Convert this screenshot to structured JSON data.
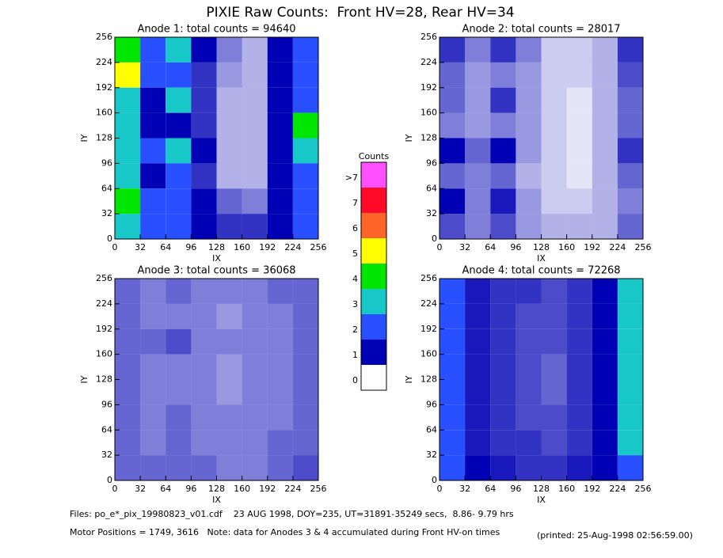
{
  "title": "PIXIE Raw Counts:  Front HV=28, Rear HV=34",
  "chart_data": [
    {
      "type": "heatmap",
      "title": "Anode 1: total counts = 94640",
      "xlabel": "IX",
      "ylabel": "IY",
      "xlim": [
        0,
        256
      ],
      "ylim": [
        0,
        256
      ],
      "xticks": [
        0,
        32,
        64,
        96,
        128,
        160,
        192,
        224,
        256
      ],
      "yticks": [
        0,
        32,
        64,
        96,
        128,
        160,
        192,
        224,
        256
      ],
      "values": [
        [
          4,
          2,
          3,
          1,
          0.5,
          0.3,
          1,
          2.5
        ],
        [
          5,
          2,
          2,
          0.8,
          0.4,
          0.3,
          1,
          2.5
        ],
        [
          3,
          1.5,
          3,
          0.8,
          0.3,
          0.3,
          1,
          2
        ],
        [
          3,
          1.5,
          1,
          0.8,
          0.3,
          0.3,
          1.2,
          4
        ],
        [
          3,
          2,
          3,
          1,
          0.3,
          0.3,
          1.5,
          3
        ],
        [
          3,
          1.5,
          2,
          0.8,
          0.3,
          0.3,
          1,
          2
        ],
        [
          4,
          2,
          2,
          1,
          0.6,
          0.5,
          1,
          2
        ],
        [
          3,
          2,
          2,
          1,
          0.8,
          0.8,
          1.2,
          2.5
        ]
      ]
    },
    {
      "type": "heatmap",
      "title": "Anode 2: total counts = 28017",
      "xlabel": "IX",
      "ylabel": "IY",
      "xlim": [
        0,
        256
      ],
      "ylim": [
        0,
        256
      ],
      "xticks": [
        0,
        32,
        64,
        96,
        128,
        160,
        192,
        224,
        256
      ],
      "yticks": [
        0,
        32,
        64,
        96,
        128,
        160,
        192,
        224,
        256
      ],
      "values": [
        [
          0.8,
          0.5,
          0.8,
          0.5,
          0.2,
          0.2,
          0.3,
          0.8
        ],
        [
          0.6,
          0.4,
          0.5,
          0.4,
          0.2,
          0.2,
          0.3,
          0.7
        ],
        [
          0.6,
          0.4,
          0.8,
          0.4,
          0.2,
          0.1,
          0.3,
          0.6
        ],
        [
          0.5,
          0.4,
          0.5,
          0.4,
          0.2,
          0.1,
          0.3,
          0.6
        ],
        [
          1,
          0.6,
          1,
          0.4,
          0.2,
          0.1,
          0.3,
          0.8
        ],
        [
          0.6,
          0.5,
          0.6,
          0.3,
          0.2,
          0.1,
          0.3,
          0.6
        ],
        [
          1,
          0.5,
          0.9,
          0.4,
          0.2,
          0.2,
          0.3,
          0.5
        ],
        [
          0.7,
          0.5,
          0.7,
          0.4,
          0.3,
          0.3,
          0.3,
          0.6
        ]
      ]
    },
    {
      "type": "heatmap",
      "title": "Anode 3: total counts = 36068",
      "xlabel": "IX",
      "ylabel": "IY",
      "xlim": [
        0,
        256
      ],
      "ylim": [
        0,
        256
      ],
      "xticks": [
        0,
        32,
        64,
        96,
        128,
        160,
        192,
        224,
        256
      ],
      "yticks": [
        0,
        32,
        64,
        96,
        128,
        160,
        192,
        224,
        256
      ],
      "values": [
        [
          0.6,
          0.5,
          0.6,
          0.5,
          0.5,
          0.5,
          0.6,
          0.6
        ],
        [
          0.6,
          0.5,
          0.5,
          0.5,
          0.4,
          0.5,
          0.5,
          0.6
        ],
        [
          0.6,
          0.6,
          0.7,
          0.5,
          0.5,
          0.5,
          0.5,
          0.6
        ],
        [
          0.6,
          0.5,
          0.5,
          0.5,
          0.4,
          0.5,
          0.5,
          0.6
        ],
        [
          0.6,
          0.5,
          0.5,
          0.5,
          0.4,
          0.5,
          0.5,
          0.6
        ],
        [
          0.6,
          0.5,
          0.6,
          0.5,
          0.5,
          0.5,
          0.5,
          0.6
        ],
        [
          0.6,
          0.5,
          0.6,
          0.5,
          0.5,
          0.5,
          0.6,
          0.6
        ],
        [
          0.6,
          0.6,
          0.6,
          0.6,
          0.5,
          0.5,
          0.6,
          0.7
        ]
      ]
    },
    {
      "type": "heatmap",
      "title": "Anode 4: total counts = 72268",
      "xlabel": "IX",
      "ylabel": "IY",
      "xlim": [
        0,
        256
      ],
      "ylim": [
        0,
        256
      ],
      "xticks": [
        0,
        32,
        64,
        96,
        128,
        160,
        192,
        224,
        256
      ],
      "yticks": [
        0,
        32,
        64,
        96,
        128,
        160,
        192,
        224,
        256
      ],
      "values": [
        [
          2,
          0.9,
          0.8,
          0.8,
          0.7,
          0.8,
          1,
          3
        ],
        [
          2,
          0.9,
          0.8,
          0.7,
          0.7,
          0.8,
          1,
          3
        ],
        [
          2,
          0.9,
          0.8,
          0.7,
          0.7,
          0.8,
          1,
          3.5
        ],
        [
          2,
          0.9,
          0.8,
          0.7,
          0.6,
          0.8,
          1,
          3
        ],
        [
          2,
          0.9,
          0.8,
          0.7,
          0.6,
          0.8,
          1,
          3
        ],
        [
          2,
          0.9,
          0.8,
          0.7,
          0.7,
          0.8,
          1,
          3
        ],
        [
          2,
          0.9,
          0.8,
          0.8,
          0.7,
          0.8,
          1,
          3
        ],
        [
          2.5,
          1,
          0.9,
          0.8,
          0.8,
          0.9,
          1,
          2.5
        ]
      ]
    }
  ],
  "colorbar": {
    "title": "Counts",
    "labels": [
      "0",
      "1",
      "2",
      "3",
      "4",
      "5",
      "6",
      "7",
      ">7"
    ],
    "colors": [
      "#ffffff",
      "#0000b4",
      "#2850ff",
      "#18c8c8",
      "#00e600",
      "#ffff00",
      "#ff6428",
      "#ff0a28",
      "#ff50ff"
    ]
  },
  "footer": {
    "files": "Files: po_e*_pix_19980823_v01.cdf    23 AUG 1998, DOY=235, UT=31891-35249 secs,  8.86- 9.79 hrs",
    "motor": "Motor Positions = 1749, 3616   Note: data for Anodes 3 & 4 accumulated during Front HV-on times",
    "printed": "(printed: 25-Aug-1998 02:56:59.00)"
  }
}
